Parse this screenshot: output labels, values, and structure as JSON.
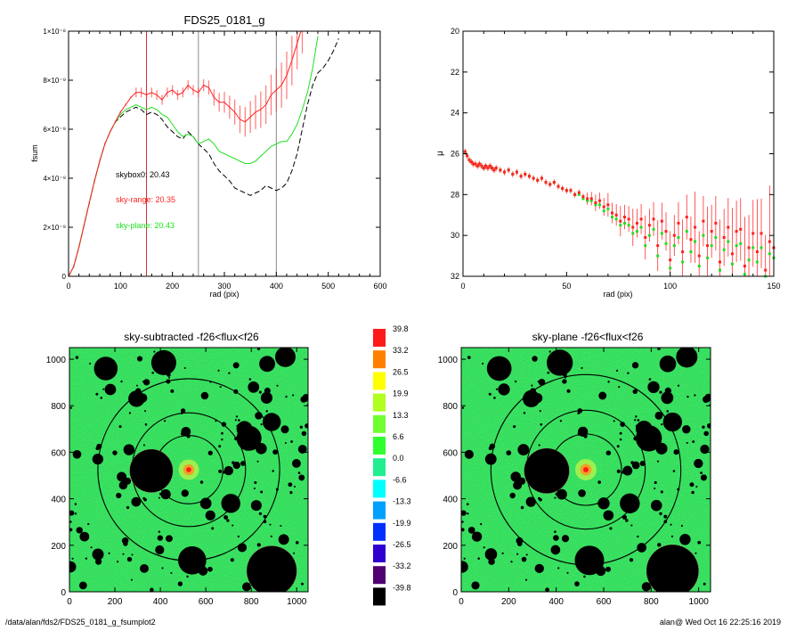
{
  "chart_data": [
    {
      "type": "line",
      "title": "FDS25_0181_g",
      "xlabel": "rad (pix)",
      "ylabel": "fsum",
      "xlim": [
        0,
        600
      ],
      "ylim": [
        0,
        1e-08
      ],
      "x_ticks": [
        0,
        100,
        200,
        300,
        400,
        500,
        600
      ],
      "x_tick_labels": [
        "0",
        "100",
        "200",
        "300",
        "400",
        "500",
        "600"
      ],
      "y_ticks": [
        0,
        2e-09,
        4e-09,
        6e-09,
        8e-09,
        1e-08
      ],
      "y_tick_labels": [
        "0",
        "2×10⁻⁹",
        "4×10⁻⁹",
        "6×10⁻⁹",
        "8×10⁻⁹",
        "1×10⁻⁸"
      ],
      "vlines": [
        {
          "x": 150,
          "color": "#d03030"
        },
        {
          "x": 250,
          "color": "#888888"
        },
        {
          "x": 400,
          "color": "#888888"
        }
      ],
      "annotations": [
        {
          "text": "skybox0: 20.43",
          "color": "#000000"
        },
        {
          "text": "sky-range: 20.35",
          "color": "#ff2020"
        },
        {
          "text": "sky-plane: 20.43",
          "color": "#20e020"
        }
      ],
      "series": [
        {
          "color": "#ff2020",
          "style": "solid",
          "x": [
            0,
            10,
            20,
            30,
            40,
            50,
            60,
            70,
            80,
            90,
            100,
            110,
            120,
            130,
            140,
            150,
            160,
            170,
            180,
            190,
            200,
            210,
            220,
            230,
            240,
            250,
            260,
            270,
            280,
            290,
            300,
            310,
            320,
            330,
            340,
            350,
            360,
            370,
            380,
            390,
            400,
            410,
            420,
            430,
            440,
            450
          ],
          "y": [
            0,
            4e-10,
            1.2e-09,
            2.1e-09,
            3e-09,
            3.9e-09,
            4.7e-09,
            5.4e-09,
            5.9e-09,
            6.3e-09,
            6.7e-09,
            7e-09,
            7.3e-09,
            7.5e-09,
            7.5e-09,
            7.4e-09,
            7.5e-09,
            7.4e-09,
            7.2e-09,
            7.5e-09,
            7.6e-09,
            7.4e-09,
            7.5e-09,
            7.8e-09,
            7.6e-09,
            7.5e-09,
            7.8e-09,
            7.7e-09,
            7.3e-09,
            7.1e-09,
            7.1e-09,
            6.9e-09,
            6.7e-09,
            6.4e-09,
            6.3e-09,
            6.5e-09,
            6.7e-09,
            6.8e-09,
            7e-09,
            7.4e-09,
            7.6e-09,
            7.8e-09,
            8.2e-09,
            8.8e-09,
            9.5e-09,
            1.02e-08
          ]
        },
        {
          "color": "#20e020",
          "style": "solid",
          "x": [
            0,
            10,
            20,
            30,
            40,
            50,
            60,
            70,
            80,
            90,
            100,
            110,
            120,
            130,
            140,
            150,
            160,
            170,
            180,
            190,
            200,
            210,
            220,
            230,
            240,
            250,
            260,
            270,
            280,
            290,
            300,
            310,
            320,
            330,
            340,
            350,
            360,
            370,
            380,
            390,
            400,
            410,
            420,
            430,
            440,
            450,
            460,
            470,
            480
          ],
          "y": [
            0,
            4e-10,
            1.2e-09,
            2.1e-09,
            3e-09,
            3.9e-09,
            4.7e-09,
            5.4e-09,
            5.9e-09,
            6.3e-09,
            6.6e-09,
            6.8e-09,
            6.9e-09,
            7e-09,
            6.9e-09,
            6.8e-09,
            6.9e-09,
            6.8e-09,
            6.6e-09,
            6.5e-09,
            6.2e-09,
            5.9e-09,
            5.7e-09,
            5.8e-09,
            5.7e-09,
            5.4e-09,
            5.5e-09,
            5.6e-09,
            5.4e-09,
            5.1e-09,
            5e-09,
            4.9e-09,
            4.8e-09,
            4.7e-09,
            4.6e-09,
            4.6e-09,
            4.7e-09,
            4.9e-09,
            5.1e-09,
            5.3e-09,
            5.4e-09,
            5.5e-09,
            5.5e-09,
            5.8e-09,
            6.2e-09,
            6.8e-09,
            7.5e-09,
            8.5e-09,
            9.8e-09
          ]
        },
        {
          "color": "#000000",
          "style": "dashed",
          "x": [
            0,
            10,
            20,
            30,
            40,
            50,
            60,
            70,
            80,
            90,
            100,
            110,
            120,
            130,
            140,
            150,
            160,
            170,
            180,
            190,
            200,
            210,
            220,
            230,
            240,
            250,
            260,
            270,
            280,
            290,
            300,
            310,
            320,
            330,
            340,
            350,
            360,
            370,
            380,
            390,
            400,
            410,
            420,
            430,
            440,
            450,
            460,
            470,
            480,
            490,
            500,
            510,
            520
          ],
          "y": [
            0,
            4e-10,
            1.2e-09,
            2.1e-09,
            3e-09,
            3.9e-09,
            4.7e-09,
            5.4e-09,
            5.9e-09,
            6.3e-09,
            6.5e-09,
            6.7e-09,
            6.8e-09,
            6.9e-09,
            6.8e-09,
            6.6e-09,
            6.7e-09,
            6.6e-09,
            6.4e-09,
            6.1e-09,
            5.9e-09,
            5.7e-09,
            5.6e-09,
            5.9e-09,
            5.7e-09,
            5.4e-09,
            5.2e-09,
            5e-09,
            4.6e-09,
            4.3e-09,
            4.1e-09,
            3.9e-09,
            3.6e-09,
            3.5e-09,
            3.4e-09,
            3.3e-09,
            3.4e-09,
            3.5e-09,
            3.7e-09,
            3.6e-09,
            3.5e-09,
            3.6e-09,
            3.8e-09,
            4.3e-09,
            5e-09,
            6e-09,
            7e-09,
            7.8e-09,
            8.3e-09,
            8.5e-09,
            8.8e-09,
            9.2e-09,
            9.7e-09
          ]
        }
      ]
    },
    {
      "type": "scatter",
      "title": "",
      "xlabel": "rad (pix)",
      "ylabel": "μ",
      "xlim": [
        0,
        150
      ],
      "ylim": [
        32,
        20
      ],
      "x_ticks": [
        0,
        50,
        100,
        150
      ],
      "x_tick_labels": [
        "0",
        "50",
        "100",
        "150"
      ],
      "y_ticks": [
        20,
        22,
        24,
        26,
        28,
        30,
        32
      ],
      "y_tick_labels": [
        "20",
        "22",
        "24",
        "26",
        "28",
        "30",
        "32"
      ],
      "series": [
        {
          "color": "#ff2020",
          "marker": "square",
          "x": [
            1,
            2,
            3,
            4,
            5,
            6,
            7,
            8,
            9,
            10,
            11,
            12,
            13,
            14,
            15,
            16,
            18,
            20,
            22,
            24,
            26,
            28,
            30,
            32,
            34,
            36,
            38,
            40,
            42,
            44,
            46,
            48,
            50,
            52,
            54,
            56,
            58,
            60,
            62,
            64,
            66,
            68,
            70,
            72,
            74,
            76,
            78,
            80,
            82,
            84,
            86,
            88,
            90,
            92,
            94,
            96,
            98,
            100,
            102,
            104,
            106,
            108,
            110,
            112,
            114,
            116,
            118,
            120,
            122,
            124,
            126,
            128,
            130,
            132,
            134,
            136,
            138,
            140,
            142,
            144,
            146,
            148,
            150
          ],
          "y": [
            25.9,
            26.1,
            26.3,
            26.4,
            26.5,
            26.5,
            26.6,
            26.5,
            26.6,
            26.7,
            26.6,
            26.7,
            26.6,
            26.7,
            26.8,
            26.7,
            26.8,
            26.9,
            26.8,
            27.0,
            26.9,
            27.1,
            27.0,
            27.1,
            27.2,
            27.3,
            27.2,
            27.4,
            27.5,
            27.4,
            27.6,
            27.7,
            27.8,
            27.8,
            28.0,
            27.9,
            28.1,
            28.2,
            28.2,
            28.4,
            28.3,
            28.6,
            28.5,
            28.9,
            29.0,
            29.3,
            29.1,
            29.2,
            29.6,
            29.4,
            29.2,
            30.1,
            29.5,
            29.2,
            30.5,
            29.3,
            29.8,
            31.2,
            30.0,
            29.4,
            30.8,
            29.1,
            30.2,
            29.6,
            31.0,
            29.3,
            30.5,
            29.8,
            29.4,
            31.3,
            30.1,
            29.6,
            30.9,
            29.8,
            29.7,
            31.5,
            30.6,
            29.9,
            30.8,
            29.9,
            31.7,
            30.3,
            30.6
          ]
        },
        {
          "color": "#20e020",
          "marker": "square",
          "x": [
            1,
            2,
            3,
            4,
            5,
            6,
            7,
            8,
            9,
            10,
            11,
            12,
            13,
            14,
            15,
            16,
            18,
            20,
            22,
            24,
            26,
            28,
            30,
            32,
            34,
            36,
            38,
            40,
            42,
            44,
            46,
            48,
            50,
            52,
            54,
            56,
            58,
            60,
            62,
            64,
            66,
            68,
            70,
            72,
            74,
            76,
            78,
            80,
            82,
            84,
            86,
            88,
            90,
            92,
            94,
            96,
            98,
            100,
            102,
            104,
            106,
            108,
            110,
            112,
            114,
            116,
            118,
            120,
            122,
            124,
            126,
            128,
            130,
            132,
            134,
            136,
            138,
            140,
            142,
            144,
            146,
            148,
            150
          ],
          "y": [
            25.9,
            26.1,
            26.3,
            26.4,
            26.5,
            26.5,
            26.6,
            26.5,
            26.6,
            26.7,
            26.6,
            26.7,
            26.6,
            26.7,
            26.8,
            26.7,
            26.8,
            26.9,
            26.8,
            27.0,
            26.9,
            27.1,
            27.0,
            27.1,
            27.2,
            27.3,
            27.2,
            27.4,
            27.5,
            27.4,
            27.6,
            27.7,
            27.8,
            27.8,
            28.0,
            28.0,
            28.2,
            28.3,
            28.3,
            28.5,
            28.5,
            28.8,
            28.7,
            29.1,
            29.2,
            29.5,
            29.4,
            29.5,
            29.9,
            29.8,
            29.6,
            30.5,
            30.0,
            29.7,
            31.0,
            29.9,
            30.4,
            31.6,
            30.5,
            30.1,
            31.3,
            29.8,
            30.8,
            30.3,
            31.5,
            30.0,
            31.1,
            30.5,
            30.1,
            31.7,
            30.7,
            30.3,
            31.4,
            30.5,
            30.4,
            31.9,
            31.2,
            30.6,
            31.3,
            30.6,
            32.0,
            30.9,
            31.1
          ]
        }
      ]
    },
    {
      "type": "heatmap",
      "title": "sky-subtracted -f26<flux<f26",
      "xlim": [
        0,
        1050
      ],
      "ylim": [
        0,
        1050
      ],
      "x_ticks": [
        0,
        200,
        400,
        600,
        800,
        1000
      ],
      "x_tick_labels": [
        "0",
        "200",
        "400",
        "600",
        "800",
        "1000"
      ],
      "y_ticks": [
        0,
        200,
        400,
        600,
        800,
        1000
      ],
      "y_tick_labels": [
        "0",
        "200",
        "400",
        "600",
        "800",
        "1000"
      ],
      "center": [
        525,
        525
      ],
      "ellipses": [
        {
          "rx": 150,
          "ry": 150,
          "color": "#000000"
        },
        {
          "rx": 250,
          "ry": 250,
          "color": "#000000"
        },
        {
          "rx": 400,
          "ry": 400,
          "color": "#000000"
        }
      ]
    },
    {
      "type": "heatmap",
      "title": "sky-plane -f26<flux<f26",
      "xlim": [
        0,
        1050
      ],
      "ylim": [
        0,
        1050
      ],
      "x_ticks": [
        0,
        200,
        400,
        600,
        800,
        1000
      ],
      "x_tick_labels": [
        "0",
        "200",
        "400",
        "600",
        "800",
        "1000"
      ],
      "y_ticks": [
        0,
        200,
        400,
        600,
        800,
        1000
      ],
      "y_tick_labels": [
        "0",
        "200",
        "400",
        "600",
        "800",
        "1000"
      ],
      "center": [
        525,
        525
      ],
      "ellipses": [
        {
          "rx": 150,
          "ry": 150,
          "color": "#000000"
        },
        {
          "rx": 250,
          "ry": 250,
          "color": "#000000"
        },
        {
          "rx": 400,
          "ry": 400,
          "color": "#000000"
        }
      ]
    }
  ],
  "colorbar": {
    "labels": [
      "39.8",
      "33.2",
      "26.5",
      "19.9",
      "13.3",
      "6.6",
      "0.0",
      "-6.6",
      "-13.3",
      "-19.9",
      "-26.5",
      "-33.2",
      "-39.8"
    ],
    "colors": [
      "#ff1a1a",
      "#ff8000",
      "#ffff00",
      "#b0ff20",
      "#70ff30",
      "#30ff30",
      "#20ee90",
      "#00ffff",
      "#00a0ff",
      "#0030ff",
      "#3000d0",
      "#500070",
      "#000000"
    ]
  },
  "footer": {
    "left": "/data/alan/fds2/FDS25_0181_g_fsumplot2",
    "right": "alan@  Wed Oct 16 22:25:16 2019"
  }
}
